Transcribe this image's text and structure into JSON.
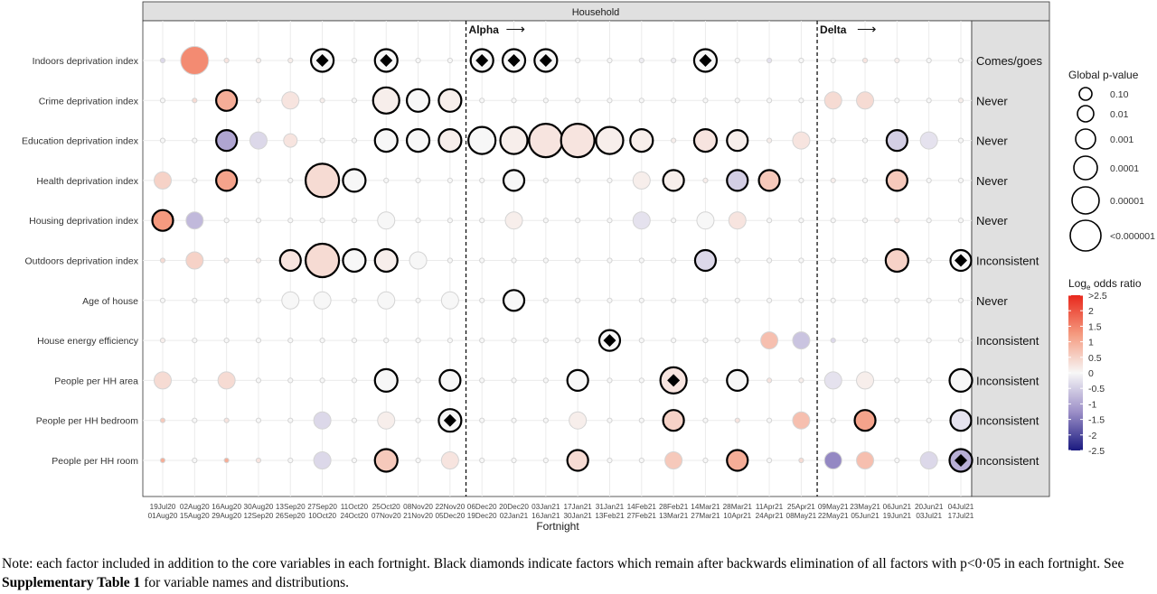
{
  "chart_data": {
    "type": "scatter",
    "panel_title": "Household",
    "xlabel": "Fortnight",
    "x_ticks_top": [
      "19Jul20",
      "02Aug20",
      "16Aug20",
      "30Aug20",
      "13Sep20",
      "27Sep20",
      "11Oct20",
      "25Oct20",
      "08Nov20",
      "22Nov20",
      "06Dec20",
      "20Dec20",
      "03Jan21",
      "17Jan21",
      "31Jan21",
      "14Feb21",
      "28Feb21",
      "14Mar21",
      "28Mar21",
      "11Apr21",
      "25Apr21",
      "09May21",
      "23May21",
      "06Jun21",
      "20Jun21",
      "04Jul21"
    ],
    "x_ticks_bottom": [
      "01Aug20",
      "15Aug20",
      "29Aug20",
      "12Sep20",
      "26Sep20",
      "10Oct20",
      "24Oct20",
      "07Nov20",
      "21Nov20",
      "05Dec20",
      "19Dec20",
      "02Jan21",
      "16Jan21",
      "30Jan21",
      "13Feb21",
      "27Feb21",
      "13Mar21",
      "27Mar21",
      "10Apr21",
      "24Apr21",
      "08May21",
      "22May21",
      "05Jun21",
      "19Jun21",
      "03Jul21",
      "17Jul21"
    ],
    "variants": [
      {
        "label": "Alpha",
        "arrow": "⟶",
        "after_index": 9
      },
      {
        "label": "Delta",
        "arrow": "⟶",
        "after_index": 20
      }
    ],
    "rows": [
      {
        "name": "Indoors deprivation index",
        "strip": "Comes/goes",
        "p": [
          0,
          6,
          0,
          0,
          0,
          8,
          0,
          8,
          0,
          0,
          8,
          8,
          8,
          0,
          0,
          0,
          0,
          8,
          0,
          0,
          0,
          0,
          0,
          0,
          0,
          0
        ],
        "or": [
          -0.3,
          1.2,
          0.2,
          0.1,
          0.1,
          0,
          0,
          0,
          0,
          0,
          0,
          0,
          0,
          0,
          0,
          -0.1,
          -0.1,
          0,
          0,
          -0.2,
          0,
          0,
          0.2,
          0.1,
          0,
          0
        ],
        "d": [
          0,
          0,
          0,
          0,
          0,
          1,
          0,
          1,
          0,
          0,
          1,
          1,
          1,
          0,
          0,
          0,
          0,
          1,
          0,
          0,
          0,
          0,
          0,
          0,
          0,
          0
        ]
      },
      {
        "name": "Crime deprivation index",
        "strip": "Never",
        "p": [
          0,
          0,
          7,
          0,
          3,
          0,
          0,
          9,
          8,
          8,
          0,
          0,
          0,
          0,
          0,
          0,
          0,
          0,
          0,
          0,
          0,
          3,
          3,
          0,
          0,
          0
        ],
        "or": [
          0,
          0.3,
          0.8,
          0.1,
          0.2,
          0.1,
          0,
          0.1,
          0,
          0.1,
          0,
          0,
          0,
          0,
          0,
          0,
          0,
          0,
          0,
          0,
          0,
          0.3,
          0.3,
          0,
          0,
          0.1
        ],
        "d": [
          0,
          0,
          0,
          0,
          0,
          0,
          0,
          0,
          0,
          0,
          0,
          0,
          0,
          0,
          0,
          0,
          0,
          0,
          0,
          0,
          0,
          0,
          0,
          0,
          0,
          0
        ]
      },
      {
        "name": "Education deprivation index",
        "strip": "Never",
        "p": [
          0,
          0,
          7,
          3,
          2,
          0,
          0,
          8,
          8,
          8,
          10,
          10,
          11,
          11,
          10,
          8,
          0,
          8,
          7,
          0,
          3,
          0,
          0,
          7,
          3,
          0
        ],
        "or": [
          0,
          0,
          -0.8,
          -0.3,
          0.2,
          0,
          0,
          0,
          0,
          0.1,
          0,
          0.1,
          0.2,
          0.2,
          0.1,
          0.1,
          0.1,
          0.2,
          0.1,
          0.1,
          0.2,
          0,
          0,
          -0.4,
          -0.2,
          0
        ],
        "d": [
          0,
          0,
          0,
          0,
          0,
          0,
          0,
          0,
          0,
          0,
          0,
          0,
          0,
          0,
          0,
          0,
          0,
          0,
          0,
          0,
          0,
          0,
          0,
          0,
          0,
          0
        ]
      },
      {
        "name": "Health deprivation index",
        "strip": "Never",
        "p": [
          3,
          0,
          7,
          0,
          0,
          11,
          8,
          0,
          0,
          0,
          0,
          7,
          0,
          0,
          0,
          3,
          7,
          0,
          7,
          7,
          0,
          0,
          0,
          7,
          0,
          0
        ],
        "or": [
          0.4,
          0,
          0.9,
          0,
          0,
          0.3,
          0,
          0,
          0,
          0,
          0,
          0,
          0,
          0,
          0,
          0.1,
          0.1,
          0.1,
          -0.4,
          0.5,
          0,
          0.1,
          0,
          0.5,
          0,
          0
        ],
        "d": [
          0,
          0,
          0,
          0,
          0,
          0,
          0,
          0,
          0,
          0,
          0,
          0,
          0,
          0,
          0,
          0,
          0,
          0,
          0,
          0,
          0,
          0,
          0,
          0,
          0,
          0
        ]
      },
      {
        "name": "Housing deprivation index",
        "strip": "Never",
        "p": [
          7,
          3,
          0,
          0,
          0,
          0,
          0,
          3,
          0,
          0,
          0,
          3,
          0,
          0,
          0,
          3,
          0,
          3,
          3,
          0,
          0,
          0,
          0,
          0,
          0,
          0
        ],
        "or": [
          1.0,
          -0.6,
          0,
          0,
          0,
          0,
          0,
          0,
          0,
          0,
          0,
          0.1,
          0,
          0,
          0,
          -0.2,
          0,
          0,
          0.2,
          0,
          0,
          0,
          0,
          0.1,
          0,
          0
        ],
        "d": [
          0,
          0,
          0,
          0,
          0,
          0,
          0,
          0,
          0,
          0,
          0,
          0,
          0,
          0,
          0,
          0,
          0,
          0,
          0,
          0,
          0,
          0,
          0,
          0,
          0,
          0
        ]
      },
      {
        "name": "Outdoors deprivation index",
        "strip": "Inconsistent",
        "p": [
          0,
          3,
          0,
          0,
          7,
          11,
          8,
          8,
          3,
          0,
          0,
          0,
          0,
          0,
          0,
          0,
          0,
          7,
          0,
          0,
          0,
          0,
          0,
          8,
          0,
          7
        ],
        "or": [
          0.3,
          0.4,
          0.1,
          0.1,
          0.2,
          0.3,
          0,
          0.1,
          0,
          0,
          0,
          0,
          0,
          0,
          0,
          0,
          0,
          -0.3,
          0,
          0,
          0,
          0,
          0,
          0.4,
          0,
          0
        ],
        "d": [
          0,
          0,
          0,
          0,
          0,
          0,
          0,
          0,
          0,
          0,
          0,
          0,
          0,
          0,
          0,
          0,
          0,
          0,
          0,
          0,
          0,
          0,
          0,
          0,
          0,
          1
        ]
      },
      {
        "name": "Age of house",
        "strip": "Never",
        "p": [
          0,
          0,
          0,
          0,
          3,
          3,
          0,
          3,
          0,
          3,
          0,
          7,
          0,
          0,
          0,
          0,
          0,
          0,
          0,
          0,
          0,
          0,
          0,
          0,
          0,
          0
        ],
        "or": [
          0,
          0,
          0,
          0,
          0,
          0,
          0,
          0,
          0,
          0,
          0,
          0,
          0,
          0,
          0,
          0,
          0,
          0,
          0,
          0,
          0,
          0,
          0,
          0,
          0,
          0
        ],
        "d": [
          0,
          0,
          0,
          0,
          0,
          0,
          0,
          0,
          0,
          0,
          0,
          0,
          0,
          0,
          0,
          0,
          0,
          0,
          0,
          0,
          0,
          0,
          0,
          0,
          0,
          0
        ]
      },
      {
        "name": "House energy efficiency",
        "strip": "Inconsistent",
        "p": [
          0,
          0,
          0,
          0,
          0,
          0,
          0,
          0,
          0,
          0,
          0,
          0,
          0,
          0,
          7,
          0,
          0,
          0,
          0,
          3,
          3,
          0,
          0,
          0,
          0,
          0
        ],
        "or": [
          0.1,
          0,
          0,
          0,
          0,
          0,
          0,
          0,
          0,
          0,
          0,
          0,
          0,
          0,
          0,
          0,
          0,
          0,
          0,
          0.6,
          -0.5,
          -0.3,
          0,
          0,
          0,
          0
        ],
        "d": [
          0,
          0,
          0,
          0,
          0,
          0,
          0,
          0,
          0,
          0,
          0,
          0,
          0,
          0,
          1,
          0,
          0,
          0,
          0,
          0,
          0,
          0,
          0,
          0,
          0,
          0
        ]
      },
      {
        "name": "People per HH area",
        "strip": "Inconsistent",
        "p": [
          3,
          0,
          3,
          0,
          0,
          0,
          0,
          8,
          0,
          7,
          0,
          0,
          0,
          7,
          0,
          0,
          9,
          0,
          7,
          0,
          0,
          3,
          3,
          0,
          0,
          8
        ],
        "or": [
          0.3,
          0,
          0.3,
          0,
          0,
          0,
          0,
          0,
          0,
          0,
          0,
          0,
          0,
          0,
          0,
          0,
          0.2,
          0,
          0,
          0.2,
          0.1,
          -0.2,
          0.1,
          0,
          0,
          0
        ],
        "d": [
          0,
          0,
          0,
          0,
          0,
          0,
          0,
          0,
          0,
          0,
          0,
          0,
          0,
          0,
          0,
          0,
          1,
          0,
          0,
          0,
          0,
          0,
          0,
          0,
          0,
          0
        ]
      },
      {
        "name": "People per HH bedroom",
        "strip": "Inconsistent",
        "p": [
          0,
          0,
          0,
          0,
          0,
          3,
          0,
          3,
          0,
          8,
          0,
          0,
          0,
          3,
          0,
          0,
          7,
          0,
          0,
          0,
          3,
          0,
          7,
          0,
          0,
          7
        ],
        "or": [
          0.5,
          0,
          0.2,
          0,
          0,
          -0.3,
          0,
          0.1,
          0,
          0,
          0,
          0,
          0,
          0.1,
          0,
          0,
          0.4,
          0,
          0.2,
          0,
          0.6,
          0,
          0.9,
          0,
          0,
          -0.2
        ],
        "d": [
          0,
          0,
          0,
          0,
          0,
          0,
          0,
          0,
          0,
          1,
          0,
          0,
          0,
          0,
          0,
          0,
          0,
          0,
          0,
          0,
          0,
          0,
          0,
          0,
          0,
          0
        ]
      },
      {
        "name": "People per HH room",
        "strip": "Inconsistent",
        "p": [
          0,
          0,
          0,
          0,
          0,
          3,
          0,
          8,
          0,
          3,
          0,
          0,
          0,
          7,
          0,
          0,
          3,
          0,
          7,
          0,
          0,
          3,
          3,
          0,
          3,
          8
        ],
        "or": [
          0.8,
          0,
          0.8,
          0.2,
          0,
          -0.3,
          0,
          0.5,
          0,
          0.2,
          0,
          0,
          0,
          0.3,
          0,
          0,
          0.5,
          0,
          0.8,
          0,
          0.3,
          -1.1,
          0.6,
          0,
          -0.3,
          -0.7
        ],
        "d": [
          0,
          0,
          0,
          0,
          0,
          0,
          0,
          0,
          0,
          0,
          0,
          0,
          0,
          0,
          0,
          0,
          0,
          0,
          0,
          0,
          0,
          0,
          0,
          0,
          0,
          1
        ]
      }
    ],
    "size_legend": {
      "title": "Global p-value",
      "labels": [
        "0.10",
        "0.01",
        "0.001",
        "0.0001",
        "0.00001",
        "<0.000001"
      ]
    },
    "color_legend": {
      "title": "Log",
      "title_sub": "e",
      "title_rest": " odds ratio",
      "ticks": [
        ">2.5",
        "2",
        "1.5",
        "1",
        "0.5",
        "0",
        "-0.5",
        "-1",
        "-1.5",
        "-2",
        "-2.5"
      ],
      "range": [
        -2.5,
        2.5
      ]
    }
  },
  "note": {
    "text1": "Note: each factor included in addition to the core variables in each fortnight. Black diamonds indicate factors which remain after backwards elimination of all factors with p<0·05 in each fortnight. See ",
    "bold": "Supplementary Table 1",
    "text2": " for variable names and distributions."
  }
}
